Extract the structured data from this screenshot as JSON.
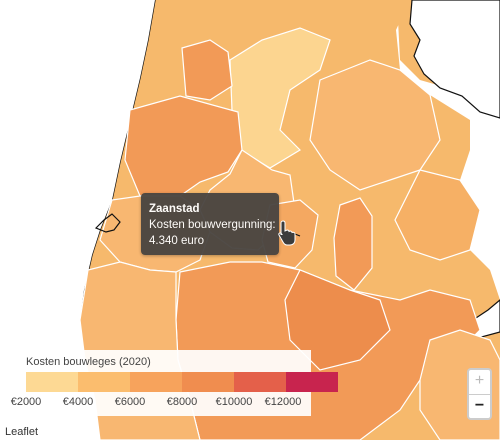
{
  "tooltip": {
    "municipality": "Zaanstad",
    "label": "Kosten bouwvergunning:",
    "value": "4.340 euro"
  },
  "legend": {
    "title": "Kosten bouwleges (2020)",
    "ticks": [
      "€2000",
      "€4000",
      "€6000",
      "€8000",
      "€10000",
      "€12000"
    ],
    "colors": [
      "#fdd994",
      "#fbbd6e",
      "#f7a35c",
      "#f08d4f",
      "#e4604a",
      "#c8244e"
    ]
  },
  "map": {
    "water_color": "#ffffff",
    "coast_color": "#111111",
    "border_color": "#ffffff"
  },
  "zoom": {
    "in_label": "+",
    "out_label": "−"
  },
  "attribution": "Leaflet"
}
